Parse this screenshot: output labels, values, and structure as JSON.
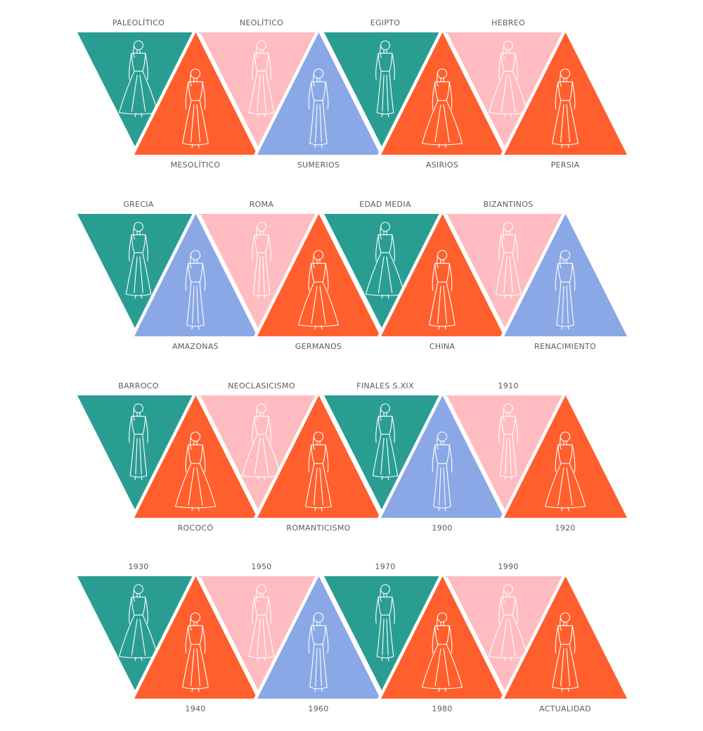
{
  "colors": {
    "teal": "#2a9d93",
    "pink": "#ffbcc0",
    "orange": "#ff5f2d",
    "blue": "#8aa8e6",
    "label": "#5a5a5a",
    "figure_stroke": "#ffffff"
  },
  "rows": [
    {
      "top": [
        {
          "label": "PALEOLÍTICO",
          "color": "teal",
          "figure": "paleolithic-figure-icon"
        },
        {
          "label": "NEOLÍTICO",
          "color": "pink",
          "figure": "neolithic-figure-icon"
        },
        {
          "label": "EGIPTO",
          "color": "teal",
          "figure": "egypt-figure-icon"
        },
        {
          "label": "HEBREO",
          "color": "pink",
          "figure": "hebrew-figure-icon"
        }
      ],
      "bottom": [
        {
          "label": "MESOLÍTICO",
          "color": "orange",
          "figure": "mesolithic-figure-icon"
        },
        {
          "label": "SUMERIOS",
          "color": "blue",
          "figure": "sumerian-figure-icon"
        },
        {
          "label": "ASIRIOS",
          "color": "orange",
          "figure": "assyrian-figure-icon"
        },
        {
          "label": "PERSIA",
          "color": "orange",
          "figure": "persian-figure-icon"
        }
      ]
    },
    {
      "top": [
        {
          "label": "GRECIA",
          "color": "teal",
          "figure": "greek-figure-icon"
        },
        {
          "label": "ROMA",
          "color": "pink",
          "figure": "roman-figure-icon"
        },
        {
          "label": "EDAD MEDIA",
          "color": "teal",
          "figure": "medieval-figure-icon"
        },
        {
          "label": "BIZANTINOS",
          "color": "pink",
          "figure": "byzantine-figure-icon"
        }
      ],
      "bottom": [
        {
          "label": "AMAZONAS",
          "color": "blue",
          "figure": "amazon-figure-icon"
        },
        {
          "label": "GERMANOS",
          "color": "orange",
          "figure": "germanic-figure-icon"
        },
        {
          "label": "CHINA",
          "color": "orange",
          "figure": "chinese-figure-icon"
        },
        {
          "label": "RENACIMIENTO",
          "color": "blue",
          "figure": "renaissance-figure-icon"
        }
      ]
    },
    {
      "top": [
        {
          "label": "BARROCO",
          "color": "teal",
          "figure": "baroque-figure-icon"
        },
        {
          "label": "NEOCLASICISMO",
          "color": "pink",
          "figure": "neoclassical-figure-icon"
        },
        {
          "label": "FINALES S.XIX",
          "color": "teal",
          "figure": "late-19th-century-figure-icon"
        },
        {
          "label": "1910",
          "color": "pink",
          "figure": "1910-figure-icon"
        }
      ],
      "bottom": [
        {
          "label": "ROCOCÓ",
          "color": "orange",
          "figure": "rococo-figure-icon"
        },
        {
          "label": "ROMANTICISMO",
          "color": "orange",
          "figure": "romanticism-figure-icon"
        },
        {
          "label": "1900",
          "color": "blue",
          "figure": "1900-figure-icon"
        },
        {
          "label": "1920",
          "color": "orange",
          "figure": "1920-figure-icon"
        }
      ]
    },
    {
      "top": [
        {
          "label": "1930",
          "color": "teal",
          "figure": "1930-figure-icon"
        },
        {
          "label": "1950",
          "color": "pink",
          "figure": "1950-figure-icon"
        },
        {
          "label": "1970",
          "color": "teal",
          "figure": "1970-figure-icon"
        },
        {
          "label": "1990",
          "color": "pink",
          "figure": "1990-figure-icon"
        }
      ],
      "bottom": [
        {
          "label": "1940",
          "color": "orange",
          "figure": "1940-figure-icon"
        },
        {
          "label": "1960",
          "color": "blue",
          "figure": "1960-figure-icon"
        },
        {
          "label": "1980",
          "color": "orange",
          "figure": "1980-figure-icon"
        },
        {
          "label": "ACTUALIDAD",
          "color": "orange",
          "figure": "present-day-figure-icon"
        }
      ]
    }
  ]
}
